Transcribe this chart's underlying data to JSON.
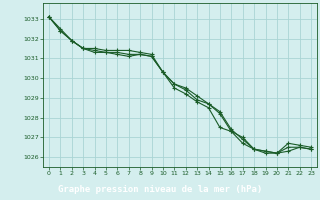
{
  "title": "Graphe pression niveau de la mer (hPa)",
  "bg_color": "#d4eeee",
  "grid_color": "#aad4d4",
  "line_color": "#1a5c28",
  "ylim": [
    1025.5,
    1033.8
  ],
  "xlim": [
    -0.5,
    23.5
  ],
  "yticks": [
    1026,
    1027,
    1028,
    1029,
    1030,
    1031,
    1032,
    1033
  ],
  "xticks": [
    0,
    1,
    2,
    3,
    4,
    5,
    6,
    7,
    8,
    9,
    10,
    11,
    12,
    13,
    14,
    15,
    16,
    17,
    18,
    19,
    20,
    21,
    22,
    23
  ],
  "series": [
    [
      1033.1,
      1032.5,
      1031.9,
      1031.5,
      1031.4,
      1031.3,
      1031.3,
      1031.2,
      1031.2,
      1031.1,
      1030.3,
      1029.7,
      1029.4,
      1028.9,
      1028.7,
      1028.2,
      1027.3,
      1027.0,
      1026.4,
      1026.3,
      1026.2,
      1026.5,
      1026.5,
      1026.4
    ],
    [
      1033.1,
      1032.4,
      1031.9,
      1031.5,
      1031.3,
      1031.3,
      1031.2,
      1031.1,
      1031.2,
      1031.1,
      1030.3,
      1029.5,
      1029.2,
      1028.8,
      1028.5,
      1027.5,
      1027.3,
      1026.7,
      1026.4,
      1026.2,
      1026.2,
      1026.3,
      1026.5,
      1026.4
    ],
    [
      1033.1,
      1032.4,
      1031.9,
      1031.5,
      1031.5,
      1031.4,
      1031.4,
      1031.4,
      1031.3,
      1031.2,
      1030.3,
      1029.7,
      1029.5,
      1029.1,
      1028.7,
      1028.3,
      1027.4,
      1026.9,
      1026.4,
      1026.3,
      1026.2,
      1026.7,
      1026.6,
      1026.5
    ]
  ],
  "footer_bg": "#2a6e3a",
  "footer_text": "Graphe pression niveau de la mer (hPa)",
  "footer_text_color": "#ffffff"
}
